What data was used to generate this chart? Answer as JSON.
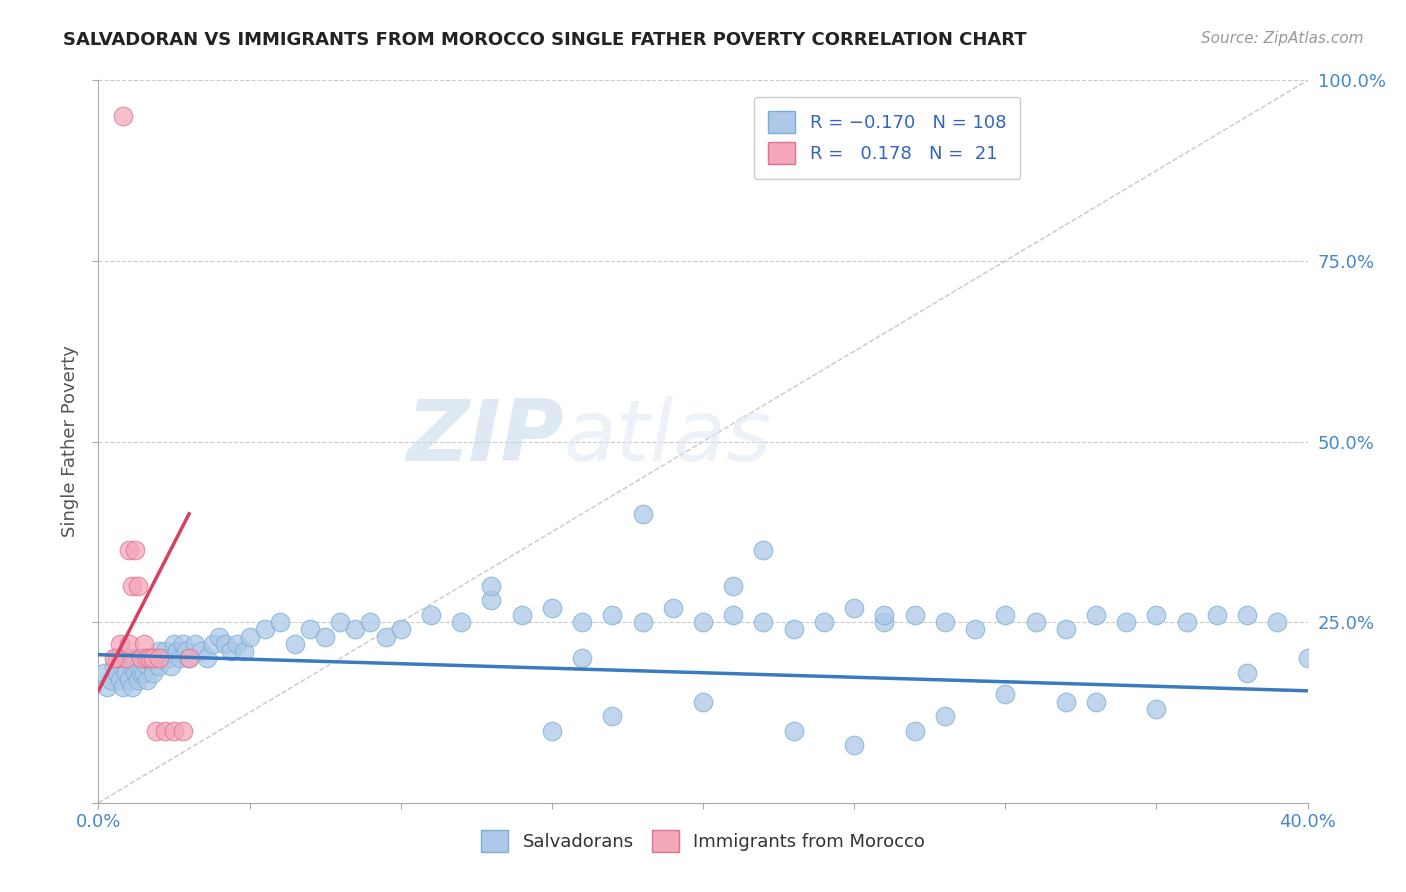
{
  "title": "SALVADORAN VS IMMIGRANTS FROM MOROCCO SINGLE FATHER POVERTY CORRELATION CHART",
  "source": "Source: ZipAtlas.com",
  "ylabel": "Single Father Poverty",
  "xlabel": "",
  "xlim": [
    0.0,
    0.4
  ],
  "ylim": [
    0.0,
    1.0
  ],
  "blue_color": "#adc8e8",
  "blue_edge": "#7aafd4",
  "pink_color": "#f4a7b9",
  "pink_edge": "#e07090",
  "trend_blue": "#3a7abf",
  "trend_pink": "#d94060",
  "diag_color": "#c8c8c8",
  "grid_color": "#cccccc",
  "watermark_zip": "ZIP",
  "watermark_atlas": "atlas",
  "blue_x": [
    0.002,
    0.003,
    0.004,
    0.005,
    0.006,
    0.007,
    0.007,
    0.008,
    0.008,
    0.009,
    0.01,
    0.01,
    0.011,
    0.011,
    0.012,
    0.012,
    0.013,
    0.013,
    0.014,
    0.014,
    0.015,
    0.015,
    0.016,
    0.016,
    0.017,
    0.018,
    0.018,
    0.019,
    0.02,
    0.02,
    0.021,
    0.022,
    0.023,
    0.024,
    0.025,
    0.026,
    0.027,
    0.028,
    0.029,
    0.03,
    0.032,
    0.034,
    0.036,
    0.038,
    0.04,
    0.042,
    0.044,
    0.046,
    0.048,
    0.05,
    0.055,
    0.06,
    0.065,
    0.07,
    0.075,
    0.08,
    0.085,
    0.09,
    0.095,
    0.1,
    0.11,
    0.12,
    0.13,
    0.14,
    0.15,
    0.16,
    0.17,
    0.18,
    0.19,
    0.2,
    0.21,
    0.22,
    0.23,
    0.24,
    0.25,
    0.26,
    0.27,
    0.28,
    0.29,
    0.3,
    0.31,
    0.32,
    0.33,
    0.34,
    0.35,
    0.36,
    0.37,
    0.38,
    0.39,
    0.4,
    0.15,
    0.2,
    0.25,
    0.3,
    0.35,
    0.13,
    0.17,
    0.22,
    0.27,
    0.32,
    0.18,
    0.23,
    0.28,
    0.33,
    0.38,
    0.16,
    0.21,
    0.26
  ],
  "blue_y": [
    0.18,
    0.16,
    0.17,
    0.19,
    0.18,
    0.2,
    0.17,
    0.19,
    0.16,
    0.18,
    0.2,
    0.17,
    0.19,
    0.16,
    0.2,
    0.18,
    0.19,
    0.17,
    0.2,
    0.18,
    0.2,
    0.18,
    0.19,
    0.17,
    0.2,
    0.19,
    0.18,
    0.2,
    0.21,
    0.19,
    0.2,
    0.21,
    0.2,
    0.19,
    0.22,
    0.21,
    0.2,
    0.22,
    0.21,
    0.2,
    0.22,
    0.21,
    0.2,
    0.22,
    0.23,
    0.22,
    0.21,
    0.22,
    0.21,
    0.23,
    0.24,
    0.25,
    0.22,
    0.24,
    0.23,
    0.25,
    0.24,
    0.25,
    0.23,
    0.24,
    0.26,
    0.25,
    0.28,
    0.26,
    0.27,
    0.25,
    0.26,
    0.25,
    0.27,
    0.25,
    0.26,
    0.25,
    0.24,
    0.25,
    0.27,
    0.25,
    0.26,
    0.25,
    0.24,
    0.26,
    0.25,
    0.24,
    0.26,
    0.25,
    0.26,
    0.25,
    0.26,
    0.26,
    0.25,
    0.2,
    0.1,
    0.14,
    0.08,
    0.15,
    0.13,
    0.3,
    0.12,
    0.35,
    0.1,
    0.14,
    0.4,
    0.1,
    0.12,
    0.14,
    0.18,
    0.2,
    0.3,
    0.26
  ],
  "pink_x": [
    0.006,
    0.007,
    0.008,
    0.009,
    0.01,
    0.01,
    0.011,
    0.012,
    0.013,
    0.014,
    0.015,
    0.016,
    0.017,
    0.018,
    0.019,
    0.02,
    0.022,
    0.025,
    0.028,
    0.03,
    0.005
  ],
  "pink_y": [
    0.2,
    0.22,
    0.95,
    0.2,
    0.35,
    0.22,
    0.3,
    0.35,
    0.3,
    0.2,
    0.22,
    0.2,
    0.2,
    0.2,
    0.1,
    0.2,
    0.1,
    0.1,
    0.1,
    0.2,
    0.2
  ],
  "blue_trend_x": [
    0.0,
    0.4
  ],
  "blue_trend_y": [
    0.205,
    0.155
  ],
  "pink_trend_x": [
    0.0,
    0.03
  ],
  "pink_trend_y": [
    0.155,
    0.4
  ]
}
